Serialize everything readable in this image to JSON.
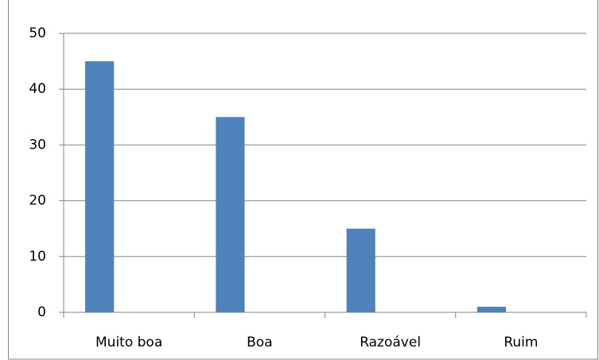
{
  "chart_data": {
    "type": "bar",
    "categories": [
      "Muito boa",
      "Boa",
      "Razoável",
      "Ruim"
    ],
    "values": [
      45,
      35,
      15,
      1
    ],
    "color": "#4f81bd",
    "ylim": [
      0,
      50
    ],
    "yticks": [
      0,
      10,
      20,
      30,
      40,
      50
    ],
    "grid": true
  }
}
